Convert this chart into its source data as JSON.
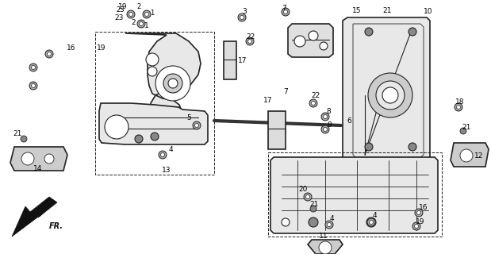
{
  "background_color": "#ffffff",
  "line_color": "#222222",
  "text_color": "#000000",
  "fig_width": 6.19,
  "fig_height": 3.2,
  "dpi": 100
}
